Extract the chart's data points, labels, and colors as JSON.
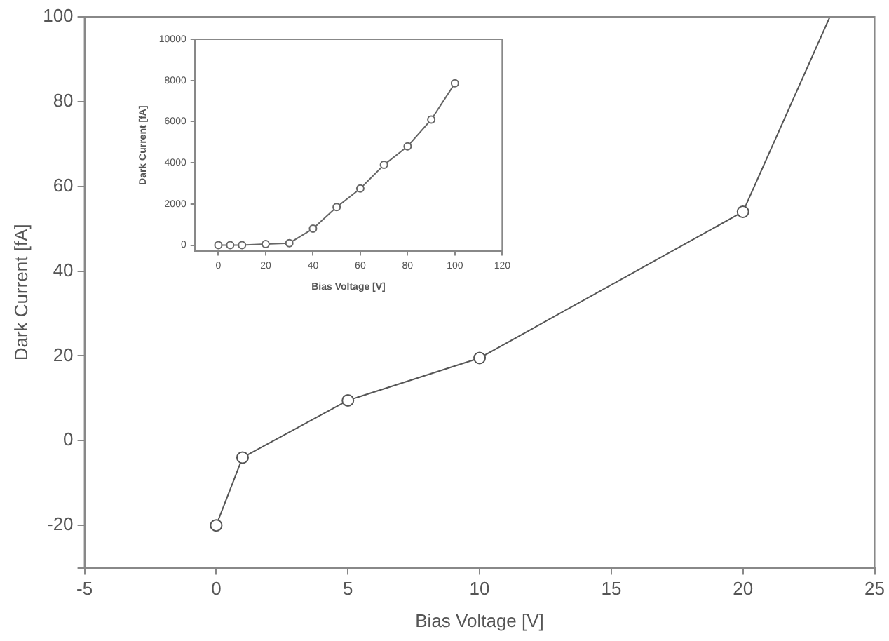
{
  "chart_data": [
    {
      "type": "line",
      "xlabel": "Bias Voltage [V]",
      "ylabel": "Dark Current [fA]",
      "xlim": [
        -5,
        25
      ],
      "xticks": [
        -5,
        0,
        5,
        10,
        15,
        20,
        25
      ],
      "ylim": [
        -30,
        100
      ],
      "yticks": [
        {
          "value": -30,
          "label": null
        },
        -20,
        0,
        20,
        40,
        60,
        80,
        100
      ],
      "grid": false,
      "legend": false,
      "marker": "circle",
      "line_style": "solid",
      "series": [
        {
          "color": "#555555",
          "x": [
            0,
            1,
            5,
            10,
            20
          ],
          "values": [
            -20,
            -4,
            9.5,
            19.5,
            54
          ]
        },
        {
          "color": "#555555",
          "x": [
            20,
            23.3
          ],
          "values": [
            54,
            100
          ],
          "marker": "none"
        }
      ]
    },
    {
      "type": "line",
      "xlabel": "Bias Voltage [V]",
      "ylabel": "Dark Current [fA]",
      "xlim": [
        -10,
        120
      ],
      "xticks": [
        0,
        20,
        40,
        60,
        80,
        100,
        120
      ],
      "ylim": [
        -300,
        10000
      ],
      "yticks": [
        0,
        2000,
        4000,
        6000,
        8000,
        10000
      ],
      "grid": false,
      "legend": false,
      "marker": "circle",
      "line_style": "solid",
      "series": [
        {
          "color": "#666666",
          "x": [
            0,
            5,
            10,
            20,
            30,
            40,
            50,
            60,
            70,
            80,
            90,
            100
          ],
          "values": [
            0,
            0,
            0,
            50,
            100,
            800,
            1850,
            2750,
            3900,
            4800,
            6100,
            7860
          ]
        }
      ]
    }
  ]
}
